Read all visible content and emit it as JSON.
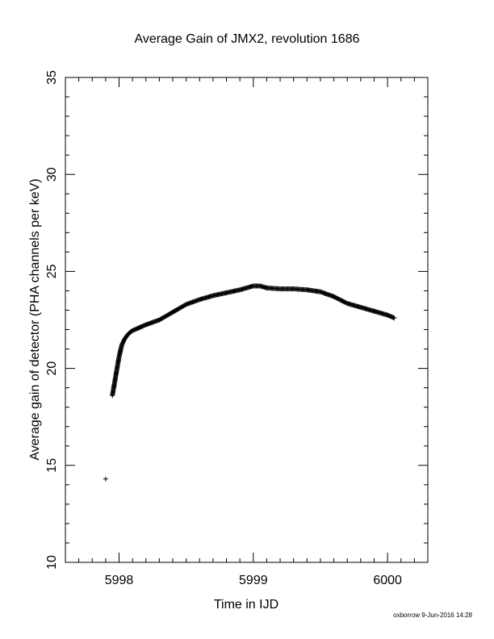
{
  "chart_data": {
    "type": "scatter",
    "title": "Average Gain of JMX2, revolution 1686",
    "xlabel": "Time in IJD",
    "ylabel": "Average gain of detector (PHA channels per keV)",
    "xlim": [
      5997.6,
      6000.3
    ],
    "ylim": [
      10,
      35
    ],
    "xticks": [
      5998,
      5999,
      6000
    ],
    "xtick_labels": [
      "5998",
      "5999",
      "6000"
    ],
    "yticks": [
      10,
      15,
      20,
      25,
      30,
      35
    ],
    "ytick_labels": [
      "10",
      "15",
      "20",
      "25",
      "30",
      "35"
    ],
    "marker": "plus",
    "grid": false,
    "series": [
      {
        "points": [
          [
            5997.9,
            14.3
          ],
          [
            5997.95,
            18.6
          ],
          [
            5997.96,
            19.0
          ],
          [
            5997.97,
            19.4
          ],
          [
            5997.98,
            19.8
          ],
          [
            5997.99,
            20.2
          ],
          [
            5998.0,
            20.6
          ],
          [
            5998.01,
            20.9
          ],
          [
            5998.02,
            21.2
          ],
          [
            5998.04,
            21.5
          ],
          [
            5998.06,
            21.7
          ],
          [
            5998.08,
            21.85
          ],
          [
            5998.1,
            21.95
          ],
          [
            5998.15,
            22.1
          ],
          [
            5998.2,
            22.25
          ],
          [
            5998.3,
            22.5
          ],
          [
            5998.4,
            22.9
          ],
          [
            5998.5,
            23.3
          ],
          [
            5998.6,
            23.55
          ],
          [
            5998.7,
            23.75
          ],
          [
            5998.8,
            23.9
          ],
          [
            5998.9,
            24.05
          ],
          [
            5999.0,
            24.25
          ],
          [
            5999.05,
            24.25
          ],
          [
            5999.1,
            24.15
          ],
          [
            5999.2,
            24.1
          ],
          [
            5999.3,
            24.1
          ],
          [
            5999.4,
            24.05
          ],
          [
            5999.5,
            23.95
          ],
          [
            5999.6,
            23.7
          ],
          [
            5999.7,
            23.35
          ],
          [
            5999.8,
            23.15
          ],
          [
            5999.9,
            22.95
          ],
          [
            6000.0,
            22.75
          ],
          [
            6000.05,
            22.6
          ]
        ]
      }
    ]
  },
  "footer": {
    "credit": "oxborrow  9-Jun-2016 14:28"
  }
}
